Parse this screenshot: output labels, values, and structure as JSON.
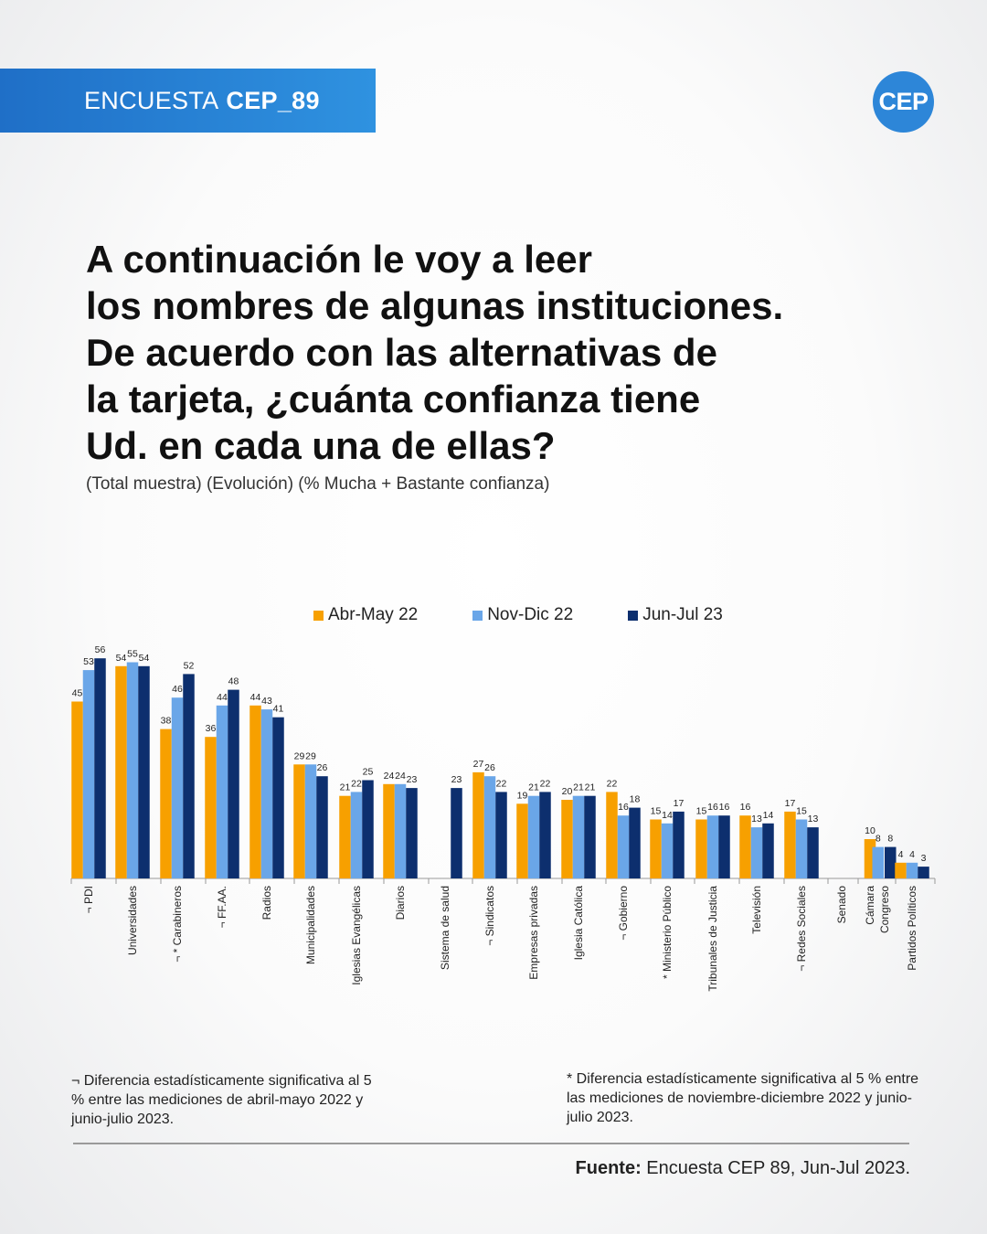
{
  "header": {
    "survey_label": "ENCUESTA",
    "survey_code": "CEP_89",
    "logo_text": "CEP"
  },
  "question_lines": [
    "A continuación le voy a leer",
    "los nombres de algunas instituciones.",
    "De acuerdo con las alternativas de",
    "la tarjeta, ¿cuánta confianza tiene",
    "Ud. en cada una de ellas?"
  ],
  "subtitle": "(Total muestra) (Evolución) (% Mucha + Bastante confianza)",
  "chart_data": {
    "type": "bar",
    "ylim": [
      0,
      60
    ],
    "grid": false,
    "legend_position": "top-center",
    "categories": [
      "PDI",
      "Universidades",
      "Carabineros",
      "FF.AA.",
      "Radios",
      "Municipalidades",
      "Iglesias Evangélicas",
      "Diarios",
      "Sistema de salud",
      "Sindicatos",
      "Empresas privadas",
      "Iglesia Católica",
      "Gobierno",
      "Ministerio Público",
      "Tribunales de Justicia",
      "Televisión",
      "Redes Sociales",
      "Senado",
      "Cámara",
      "Congreso",
      "Partidos Políticos"
    ],
    "category_marks": [
      "¬",
      "",
      "¬ *",
      "¬",
      "",
      "",
      "",
      "",
      "",
      "¬",
      "",
      "",
      "¬",
      "*",
      "",
      "",
      "¬",
      "",
      "",
      "",
      ""
    ],
    "series": [
      {
        "name": "Abr-May 22",
        "color": "#f7a000",
        "values": [
          45,
          54,
          38,
          36,
          44,
          29,
          21,
          24,
          null,
          27,
          19,
          20,
          22,
          15,
          15,
          16,
          17,
          null,
          10,
          null,
          4
        ]
      },
      {
        "name": "Nov-Dic 22",
        "color": "#6aa6e8",
        "values": [
          53,
          55,
          46,
          44,
          43,
          29,
          22,
          24,
          null,
          26,
          21,
          21,
          16,
          14,
          16,
          13,
          15,
          null,
          null,
          8,
          4
        ]
      },
      {
        "name": "Jun-Jul 23",
        "color": "#0d2f6e",
        "values": [
          56,
          54,
          52,
          48,
          41,
          26,
          25,
          23,
          23,
          22,
          22,
          21,
          18,
          17,
          16,
          14,
          13,
          null,
          null,
          8,
          3
        ]
      }
    ]
  },
  "footnotes": {
    "left": "¬ Diferencia estadísticamente significativa al 5 % entre las mediciones de abril-mayo 2022 y junio-julio 2023.",
    "right": "* Diferencia estadísticamente significativa al 5 % entre las mediciones de noviembre-diciembre 2022 y junio-julio 2023."
  },
  "source": {
    "label": "Fuente:",
    "text": "Encuesta CEP 89, Jun-Jul 2023."
  }
}
